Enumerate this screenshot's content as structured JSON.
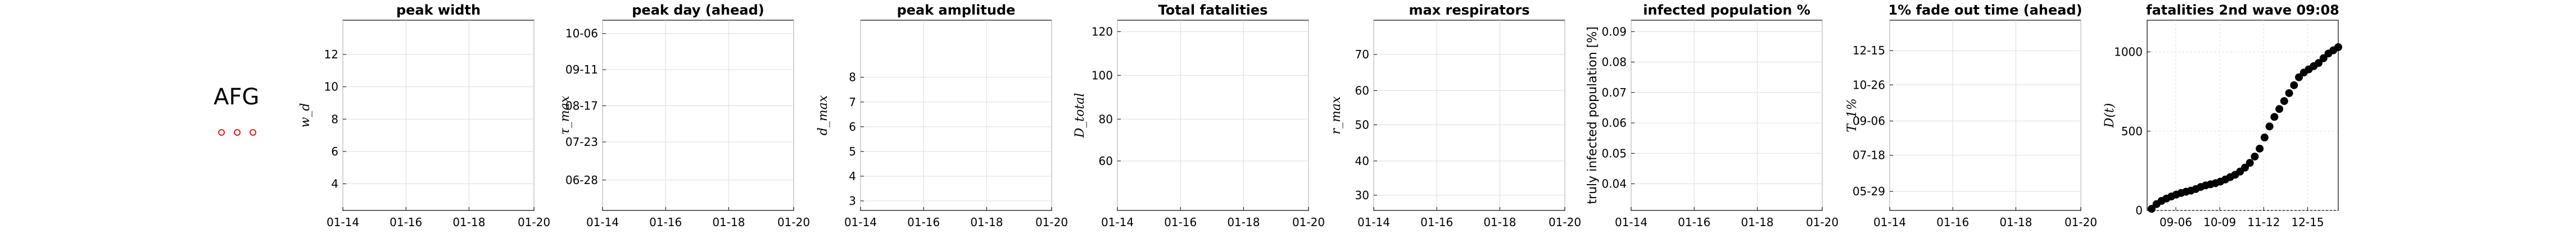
{
  "country": {
    "code": "AFG",
    "marker_color": "#e0201b",
    "marker_count": 3
  },
  "chart_data": [
    {
      "type": "line",
      "title": "peak width",
      "ylabel": "w_d",
      "x_ticks": [
        "01-14",
        "01-16",
        "01-18",
        "01-20"
      ],
      "y_ticks": [
        "4",
        "6",
        "8",
        "10",
        "12"
      ],
      "series": [],
      "grid": true
    },
    {
      "type": "line",
      "title": "peak day (ahead)",
      "ylabel": "τ_max",
      "x_ticks": [
        "01-14",
        "01-16",
        "01-18",
        "01-20"
      ],
      "y_ticks": [
        "06-28",
        "07-23",
        "08-17",
        "09-11",
        "10-06"
      ],
      "series": [],
      "grid": true
    },
    {
      "type": "line",
      "title": "peak amplitude",
      "ylabel": "d_max",
      "x_ticks": [
        "01-14",
        "01-16",
        "01-18",
        "01-20"
      ],
      "y_ticks": [
        "3",
        "4",
        "5",
        "6",
        "7",
        "8"
      ],
      "series": [],
      "grid": true
    },
    {
      "type": "line",
      "title": "Total fatalities",
      "ylabel": "D_total",
      "x_ticks": [
        "01-14",
        "01-16",
        "01-18",
        "01-20"
      ],
      "y_ticks": [
        "60",
        "80",
        "100",
        "120"
      ],
      "series": [],
      "grid": true
    },
    {
      "type": "line",
      "title": "max respirators",
      "ylabel": "r_max",
      "x_ticks": [
        "01-14",
        "01-16",
        "01-18",
        "01-20"
      ],
      "y_ticks": [
        "30",
        "40",
        "50",
        "60",
        "70"
      ],
      "series": [],
      "grid": true
    },
    {
      "type": "line",
      "title": "infected population %",
      "ylabel": "truly infected population [%]",
      "x_ticks": [
        "01-14",
        "01-16",
        "01-18",
        "01-20"
      ],
      "y_ticks": [
        "0.04",
        "0.05",
        "0.06",
        "0.07",
        "0.08",
        "0.09"
      ],
      "series": [],
      "grid": true
    },
    {
      "type": "line",
      "title": "1% fade out time (ahead)",
      "ylabel": "T_1%",
      "x_ticks": [
        "01-14",
        "01-16",
        "01-18",
        "01-20"
      ],
      "y_ticks": [
        "05-29",
        "07-18",
        "09-06",
        "10-26",
        "12-15"
      ],
      "series": [],
      "grid": true
    },
    {
      "type": "scatter",
      "title": "fatalities 2nd wave 09:08",
      "ylabel": "D(t)",
      "x_ticks": [
        "09-06",
        "10-09",
        "11-12",
        "12-15"
      ],
      "y_ticks": [
        "0",
        "500",
        "1000"
      ],
      "ylim": [
        0,
        1200
      ],
      "grid": true,
      "marker_color": "#000000",
      "series": [
        {
          "x": [
            "08-15",
            "08-19",
            "08-23",
            "08-27",
            "08-31",
            "09-04",
            "09-08",
            "09-12",
            "09-16",
            "09-20",
            "09-24",
            "09-28",
            "10-02",
            "10-06",
            "10-10",
            "10-14",
            "10-18",
            "10-22",
            "10-26",
            "10-30",
            "11-03",
            "11-07",
            "11-11",
            "11-15",
            "11-19",
            "11-23",
            "11-27",
            "12-01",
            "12-05",
            "12-09",
            "12-13",
            "12-17",
            "12-21",
            "12-25",
            "12-29",
            "01-02",
            "01-06",
            "01-10",
            "01-14"
          ],
          "y": [
            10,
            40,
            60,
            75,
            88,
            100,
            110,
            118,
            125,
            135,
            148,
            158,
            165,
            172,
            182,
            195,
            210,
            225,
            245,
            270,
            300,
            340,
            390,
            460,
            530,
            590,
            640,
            690,
            740,
            790,
            840,
            870,
            890,
            910,
            930,
            960,
            990,
            1010,
            1030
          ]
        }
      ]
    }
  ]
}
